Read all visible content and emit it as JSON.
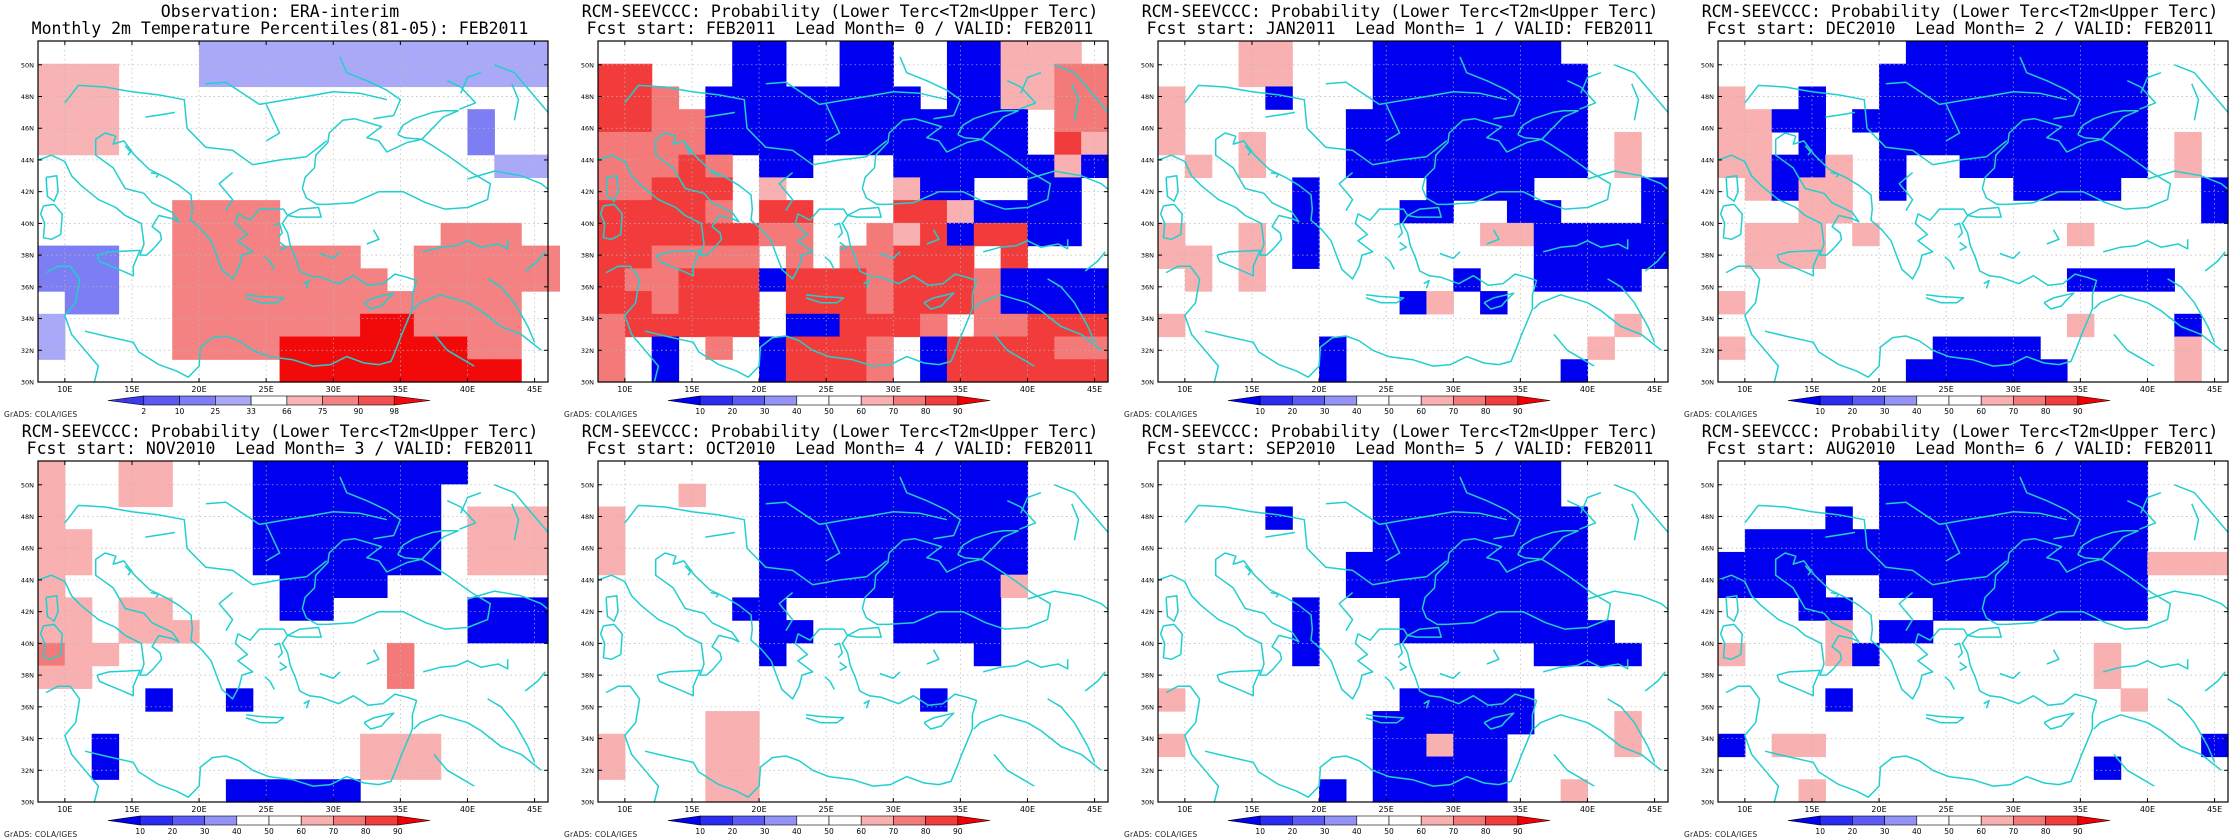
{
  "colors": {
    "coast": "#22cfcf",
    "grid": "#b8b8b8",
    "obs_scale": [
      "#3a3af0",
      "#5a5af2",
      "#7d7df4",
      "#a9a9f7",
      "#ffffff",
      "#f8b4b4",
      "#f48282",
      "#f25050",
      "#f20a0a"
    ],
    "prob_scale": [
      "#0000f0",
      "#2b2bf2",
      "#5c5cf4",
      "#9393f6",
      "#ffffff",
      "#ffffff",
      "#f8b0b0",
      "#f47a7a",
      "#f23c3c",
      "#f00000"
    ]
  },
  "axes": {
    "lon_ticks": [
      "10E",
      "15E",
      "20E",
      "25E",
      "30E",
      "35E",
      "40E",
      "45E"
    ],
    "lat_ticks": [
      "30N",
      "32N",
      "34N",
      "36N",
      "38N",
      "40N",
      "42N",
      "44N",
      "46N",
      "48N",
      "50N"
    ]
  },
  "credit": "GrADS: COLA/IGES",
  "panels": [
    {
      "id": "obs",
      "title_line1": "Observation: ERA-interim",
      "title_line2": "Monthly 2m Temperature Percentiles(81-05): FEB2011",
      "scale": "obs",
      "cbar_labels": [
        "2",
        "10",
        "25",
        "33",
        "66",
        "75",
        "90",
        "98"
      ],
      "grid": [
        "wwwwwwaaaaaaaaaaaaa",
        "fffwwwaaaaaaaaaaaaa",
        "fffwwwwwwwwwwwwwwww",
        "fffwwwwwwwwwwwwwbww",
        "fffwwwwwwwwwwwwwbww",
        "wwwwwwwwwwwwwwwwwaa",
        "wwwwwwwwwwwwwwwwwww",
        "wwwwwggggwwwwwwwwww",
        "wwwwwggggwwwwwwgggw",
        "bbbwwgggggggwwgggggg",
        "bbbwwggggggggwgggggg",
        "wbbwwgggggggggggggww",
        "awwwwgggggggiiggggww",
        "awwwwggggiiiiiiiggww",
        "wwwwwwwwwiiiiiiiiiww"
      ]
    },
    {
      "id": "lead0",
      "title_line1": "RCM-SEEVCCC: Probability (Lower Terc<T2m<Upper Terc)",
      "title_line2": "Fcst start: FEB2011  Lead Month= 0 / VALID: FEB2011",
      "scale": "prob",
      "cbar_labels": [
        "10",
        "20",
        "30",
        "40",
        "50",
        "60",
        "70",
        "80",
        "90"
      ],
      "grid": [
        "wwwwwAAwwAAwwAAfffw",
        "hhwwwAAwwAAwwAAffgg",
        "hhgwAAAAAAAAwAAffgg",
        "hhggAAAAAAAAAAAAwgg",
        "ggggAAAAAAAAAAAAwhf",
        "ggghgwAAwwwAAAAAAfA",
        "gghhhwfwwwwfAAwwAAw",
        "hhhhgwhhwwwhhfAAAAw",
        "hhhhhhggwwgfhAhhAAw",
        "hhggggwgwgghhhwhwww",
        "hgghhhAhhhghhhgAAAA",
        "hhghhhwhhhghhhgAAAA",
        "ghhhhhwAAhhhgwgghhh",
        "gwAwgwAhhhgwAhhhhgg",
        "gwAwwwAhhhgwAhhhhhh"
      ]
    },
    {
      "id": "lead1",
      "title_line1": "RCM-SEEVCCC: Probability (Lower Terc<T2m<Upper Terc)",
      "title_line2": "Fcst start: JAN2011  Lead Month= 1 / VALID: FEB2011",
      "scale": "prob",
      "cbar_labels": [
        "10",
        "20",
        "30",
        "40",
        "50",
        "60",
        "70",
        "80",
        "90"
      ],
      "grid": [
        "wwwffwwwAAAAAAAwwww",
        "wwwffwwwAAAAAAAAwww",
        "fwwwAwwwAAAAAAAAwww",
        "fwwwwwwAAAAAAAAAwww",
        "fwwfwwwAAAAAAAAAwfw",
        "wfwfwwwAAAAAAAAAwfw",
        "wwwwwAwwwwAAAAwwwwA",
        "wwwwwAwwwAAwwAAwwwA",
        "fwwfwAwwwwwwffAAAAA",
        "ffwfwAwwwwwwwwAAAAA",
        "wfwfwwwwwwwAwwAAAAw",
        "wwwwwwwwwAfwAwwwwww",
        "fwwwwwwwwwwwwwwwwfw",
        "wwwwwwAwwwwwwwwwfww",
        "wwwwwwAwwwwwwwwAwww"
      ]
    },
    {
      "id": "lead2",
      "title_line1": "RCM-SEEVCCC: Probability (Lower Terc<T2m<Upper Terc)",
      "title_line2": "Fcst start: DEC2010  Lead Month= 2 / VALID: FEB2011",
      "scale": "prob",
      "cbar_labels": [
        "10",
        "20",
        "30",
        "40",
        "50",
        "60",
        "70",
        "80",
        "90"
      ],
      "grid": [
        "wwwwwwwAAAAAAAAAwww",
        "wwwwwwAAAAAAAAAAwww",
        "fwwAwwAAAAAAAAAAwww",
        "ffAAwAAAAAAAAAAAwww",
        "ffwAwwAAAAAAAAAAwfw",
        "ffAAfwAwwAAAAAAAwfw",
        "wfAffwAwwwwAAAAwwwA",
        "wwwffwwwwwwwwwwwwwA",
        "wfffwfwwwwwwwfwwwww",
        "wfffwwwwwwwwwwwwwww",
        "wwwwwwwwwwwwwAAAAww",
        "fwwwwwwwwwwwwwwwwww",
        "wwwwwwwwwwwwwfwwwAw",
        "fwwwwwwwAAAAwwwwwfw",
        "wwwwwwwAAAAAAwwwwfw"
      ]
    },
    {
      "id": "lead3",
      "title_line1": "RCM-SEEVCCC: Probability (Lower Terc<T2m<Upper Terc)",
      "title_line2": "Fcst start: NOV2010  Lead Month= 3 / VALID: FEB2011",
      "scale": "prob",
      "cbar_labels": [
        "10",
        "20",
        "30",
        "40",
        "50",
        "60",
        "70",
        "80",
        "90"
      ],
      "grid": [
        "fwwffwwwAAAAAAAAwww",
        "fwwffwwwAAAAAAAwwww",
        "fwwwwwwwAAAAAAAwfff",
        "ffwwwwwwAAAAAAAwfff",
        "ffwwwwwwAAAAAAAwfff",
        "fwwwwwwwwAAAAwwwwww",
        "ffwffwwwwAAwwwwwAAA",
        "ffwfffwwwwwwwwwwAAA",
        "gffwwwwwwwwwwgwwwww",
        "ffwwwwwwwwwwwgwwwww",
        "wwwwAwwAwwwwwwwwwww",
        "wwwwwwwwwwwwwwwwwww",
        "wwAwwwwwwwwwfffwwww",
        "wwAwwwwwwwwwfffwwww",
        "wwwwwwwAAAAAwwwwwww"
      ]
    },
    {
      "id": "lead4",
      "title_line1": "RCM-SEEVCCC: Probability (Lower Terc<T2m<Upper Terc)",
      "title_line2": "Fcst start: OCT2010  Lead Month= 4 / VALID: FEB2011",
      "scale": "prob",
      "cbar_labels": [
        "10",
        "20",
        "30",
        "40",
        "50",
        "60",
        "70",
        "80",
        "90"
      ],
      "grid": [
        "wwwwwwAAAAAAAAAAwww",
        "wwwfwwAAAAAAAAAAwww",
        "fwwwwwAAAAAAAAAAwww",
        "fwwwwwAAAAAAAAAAwww",
        "fwwwwwAAAAAAAAAAwww",
        "wwwwwwAAAAAAAAAfwww",
        "wwwwwAAwwwwAAAAwwww",
        "wwwwwwAAwwwAAAAwwww",
        "wwwwwwAwwwwwwwAwwww",
        "wwwwwwwwwwwwwwwwwww",
        "wwwwwwwwwwwwAwwwwww",
        "wwwwffwwwwwwwwwwwww",
        "fwwwffwwwwwwwwwwwww",
        "fwwwffwwwwwwwwwwwww",
        "wwwwffwwwwwwwwwwwww"
      ]
    },
    {
      "id": "lead5",
      "title_line1": "RCM-SEEVCCC: Probability (Lower Terc<T2m<Upper Terc)",
      "title_line2": "Fcst start: SEP2010  Lead Month= 5 / VALID: FEB2011",
      "scale": "prob",
      "cbar_labels": [
        "10",
        "20",
        "30",
        "40",
        "50",
        "60",
        "70",
        "80",
        "90"
      ],
      "grid": [
        "wwwwwwwwAAAAAAAwwww",
        "wwwwwwwwAAAAAAAwwww",
        "wwwwAwwwAAAAAAAAwww",
        "wwwwwwwwAAAAAAAAwww",
        "wwwwwwwAAAAAAAAAwww",
        "wwwwwwwAAAAAAAAAwww",
        "wwwwwAwwwAAAAAAAwww",
        "wwwwwAwwwAAAAAAAAww",
        "wwwwwAwwwwwwwwAAAAw",
        "wwwwwwwwwwwwwwwwwww",
        "fwwwwwwwwAAAAAwwwww",
        "wwwwwwwwAAAAAAwwwfw",
        "fwwwwwwwAAfAAwwwwfw",
        "wwwwwwwwAAAAAwwwwww",
        "wwwwwwAwAAAAAwwfwww"
      ]
    },
    {
      "id": "lead6",
      "title_line1": "RCM-SEEVCCC: Probability (Lower Terc<T2m<Upper Terc)",
      "title_line2": "Fcst start: AUG2010  Lead Month= 6 / VALID: FEB2011",
      "scale": "prob",
      "cbar_labels": [
        "10",
        "20",
        "30",
        "40",
        "50",
        "60",
        "70",
        "80",
        "90"
      ],
      "grid": [
        "wwwwwwAAAAAAAAAAwww",
        "wwwwwwAAAAAAAAAAwww",
        "wwwwAwAAAAAAAAAAwww",
        "wAAAAAAAAAAAAAAAwww",
        "AAAAAAAAAAAAAAAAfff",
        "AAAAwwAAAAAAAAAAwww",
        "wwwAAwwwAAAAAAAAwww",
        "wwwwfwAAwwwwwwwwwww",
        "fwwwfAwwwwwwwwfwwww",
        "wwwwwwwwwwwwwwfwwww",
        "wwwwAwwwwwwwwwwfwww",
        "wwwwwwwwwwwwwwwwwww",
        "AwffwwwwwwwwwwwwwwA",
        "wwwwwwwwwwwwwwAwwww",
        "wwwfwwwwwwwwwwwwwww"
      ]
    }
  ]
}
